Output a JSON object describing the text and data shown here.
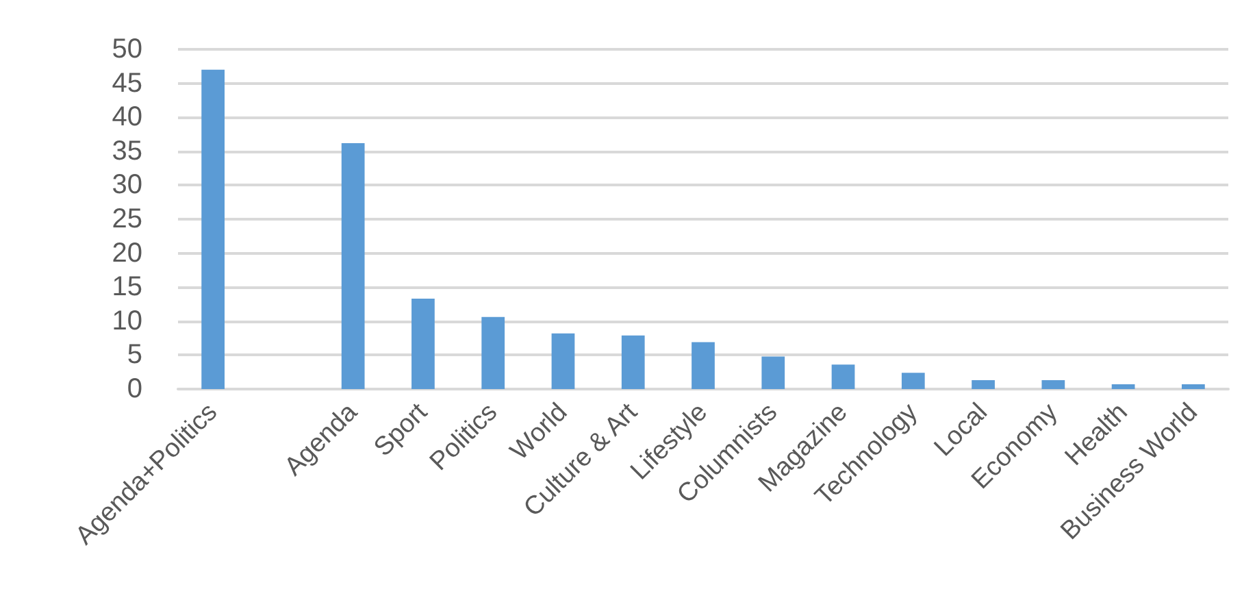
{
  "chart_data": {
    "type": "bar",
    "categories": [
      "Agenda+Politics",
      null,
      "Agenda",
      "Sport",
      "Politics",
      "World",
      "Culture & Art",
      "Lifestyle",
      "Columnists",
      "Magazine",
      "Technology",
      "Local",
      "Economy",
      "Health",
      "Business World"
    ],
    "values": [
      47.0,
      null,
      36.2,
      13.3,
      10.6,
      8.2,
      7.9,
      6.9,
      4.8,
      3.6,
      2.4,
      1.3,
      1.3,
      0.7,
      0.7
    ],
    "color": "#5b9bd5",
    "ylim": [
      0,
      50
    ],
    "yticks": [
      0,
      5,
      10,
      15,
      20,
      25,
      30,
      35,
      40,
      45,
      50
    ],
    "grid": "y"
  }
}
